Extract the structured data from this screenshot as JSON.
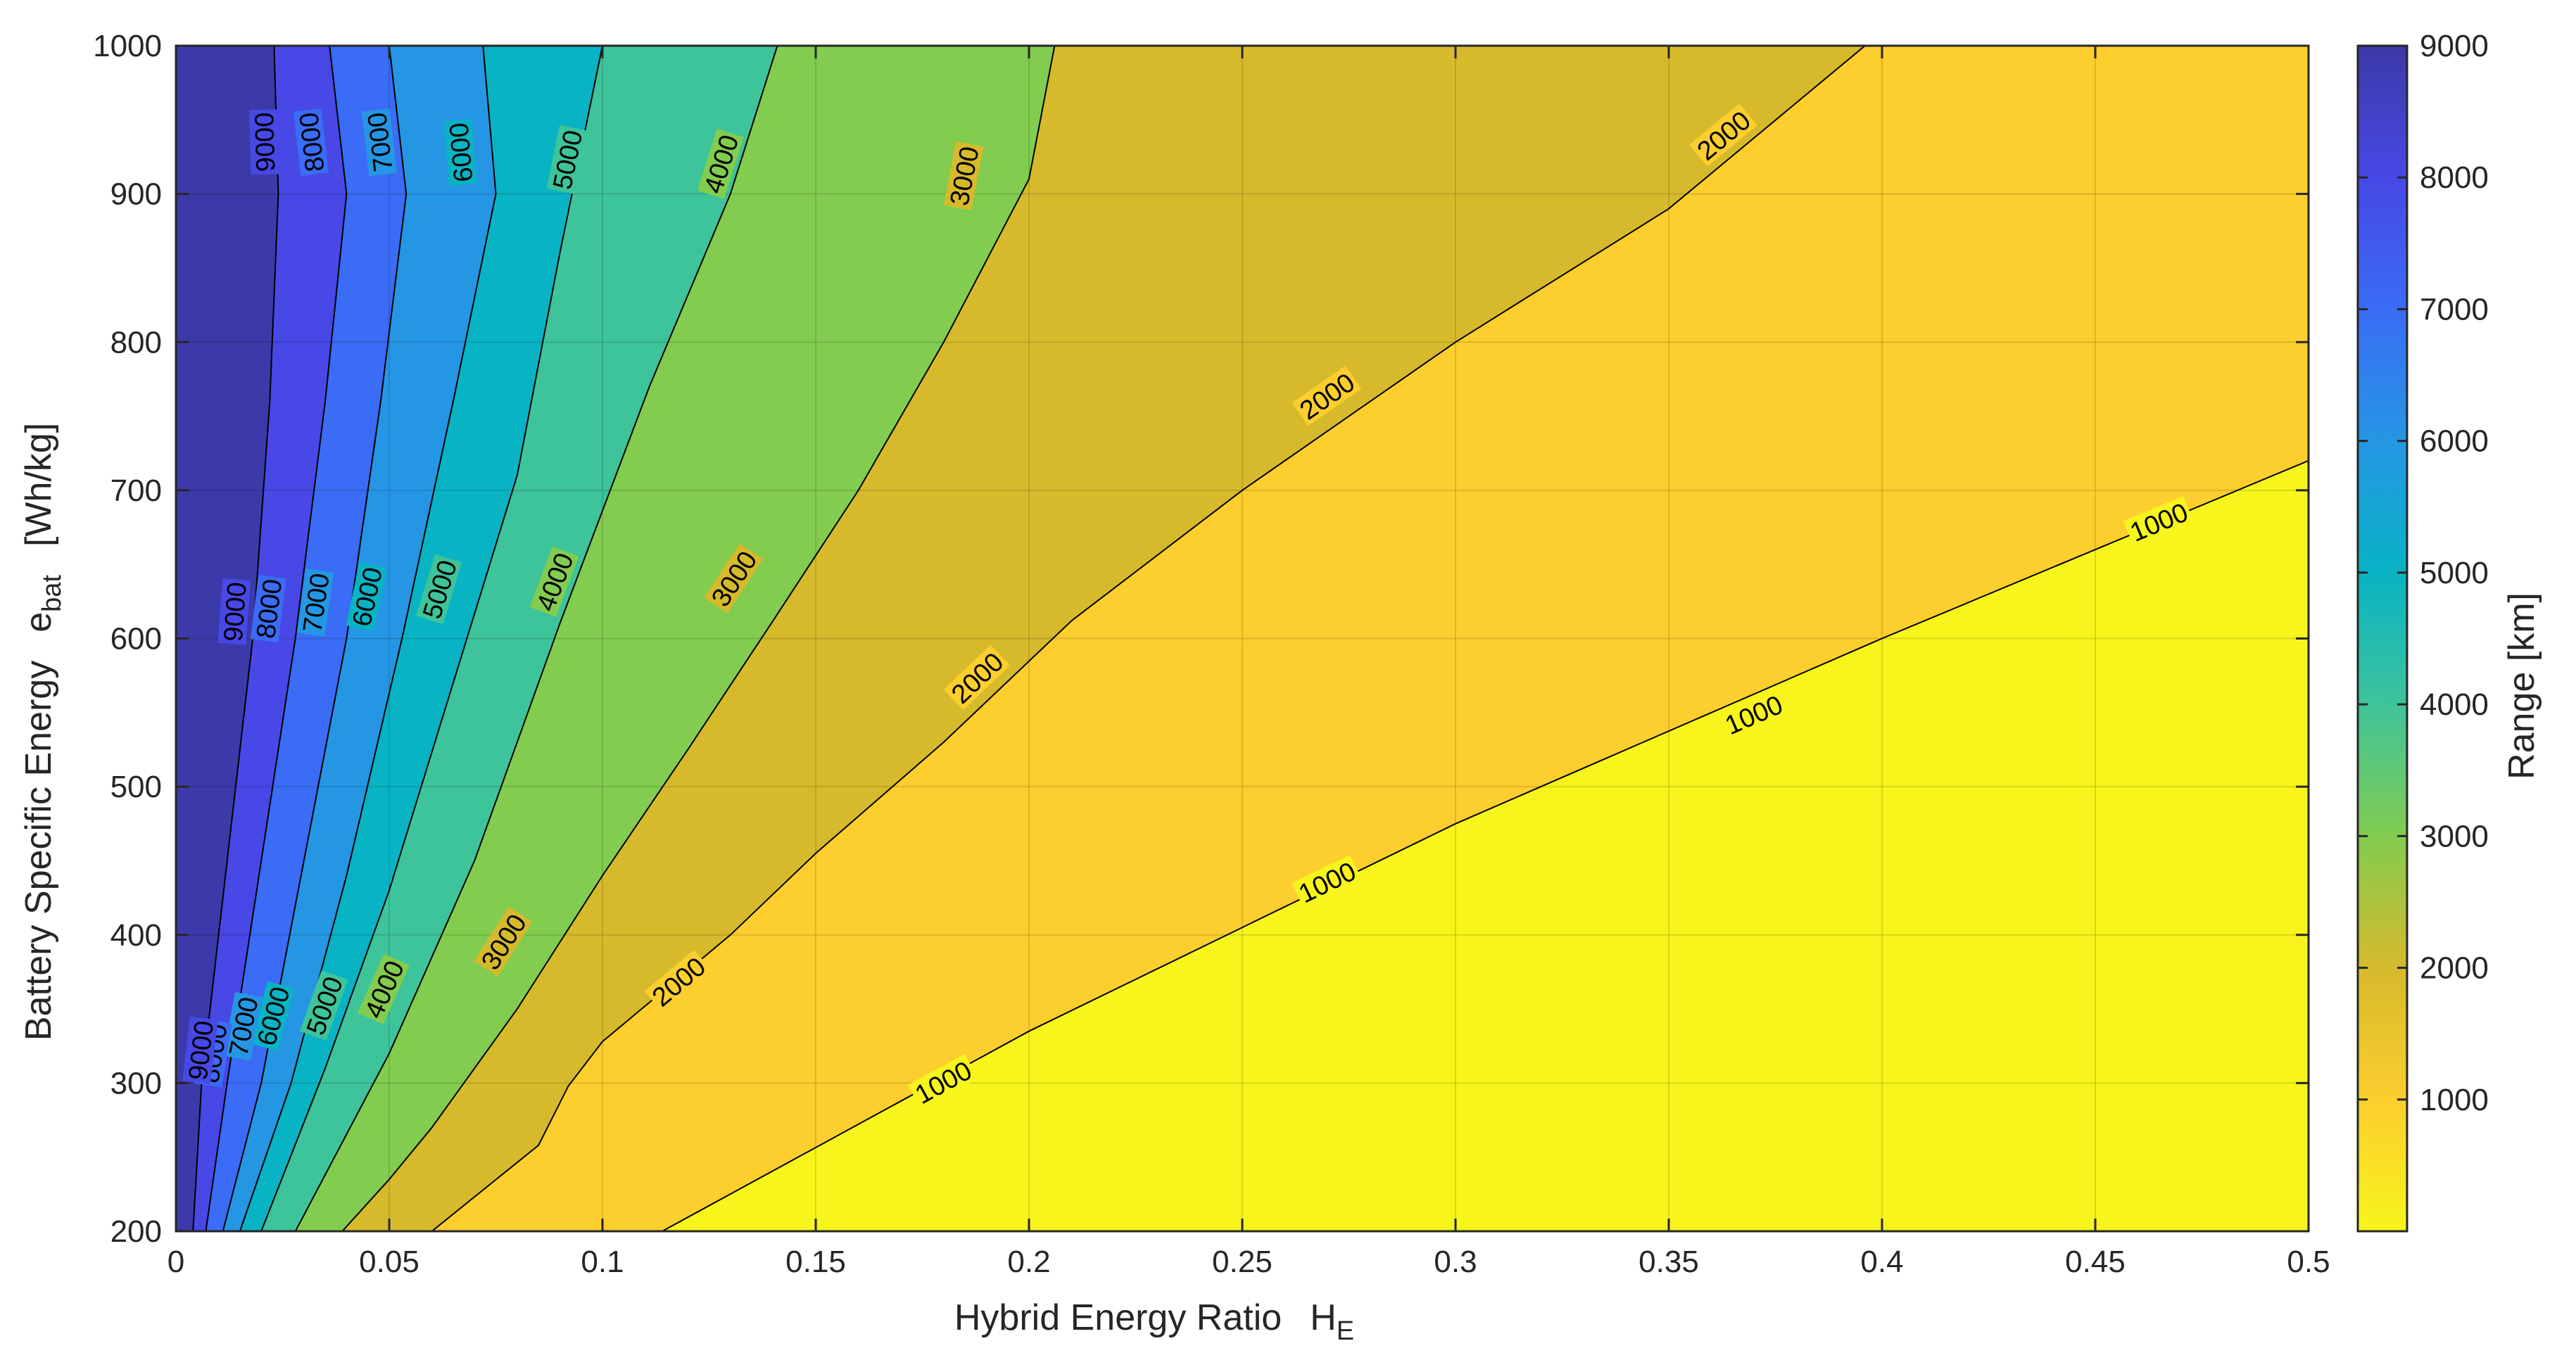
{
  "chart_data": {
    "type": "contour",
    "xlabel": "Hybrid  Energy  Ratio",
    "xlabel_symbol": "H",
    "xlabel_subscript": "E",
    "ylabel": "Battery  Specific  Energy",
    "ylabel_symbol": "e",
    "ylabel_subscript": "bat",
    "ylabel_unit": "[Wh/kg]",
    "colorbar_label": "Range  [km]",
    "xlim": [
      0,
      0.5
    ],
    "ylim": [
      200,
      1000
    ],
    "x_ticks": [
      "0",
      "0.05",
      "0.1",
      "0.15",
      "0.2",
      "0.25",
      "0.3",
      "0.35",
      "0.4",
      "0.45",
      "0.5"
    ],
    "y_ticks": [
      "200",
      "300",
      "400",
      "500",
      "600",
      "700",
      "800",
      "900",
      "1000"
    ],
    "colorbar_ticks": [
      "1000",
      "2000",
      "3000",
      "4000",
      "5000",
      "6000",
      "7000",
      "8000",
      "9000"
    ],
    "colorbar_range": [
      0,
      9000
    ],
    "grid": true,
    "colormap": "parula",
    "levels": [
      {
        "level": 1000,
        "fill": "#f7f51b",
        "boundary": [
          [
            0.114,
            200
          ],
          [
            0.2,
            335
          ],
          [
            0.3,
            475
          ],
          [
            0.4,
            600
          ],
          [
            0.5,
            720
          ]
        ],
        "label_points": [
          [
            0.18,
            300
          ],
          [
            0.27,
            435
          ],
          [
            0.37,
            548
          ],
          [
            0.465,
            678
          ]
        ]
      },
      {
        "level": 2000,
        "fill": "#fcce2e",
        "boundary": [
          [
            0.06,
            200
          ],
          [
            0.085,
            258
          ],
          [
            0.092,
            298
          ],
          [
            0.1,
            328
          ],
          [
            0.13,
            400
          ],
          [
            0.15,
            455
          ],
          [
            0.18,
            530
          ],
          [
            0.21,
            612
          ],
          [
            0.25,
            700
          ],
          [
            0.3,
            800
          ],
          [
            0.35,
            890
          ],
          [
            0.396,
            1000
          ]
        ],
        "label_points": [
          [
            0.118,
            368
          ],
          [
            0.188,
            573
          ],
          [
            0.27,
            763
          ],
          [
            0.363,
            939
          ]
        ]
      },
      {
        "level": 3000,
        "fill": "#d6ba2c",
        "boundary": [
          [
            0.039,
            200
          ],
          [
            0.05,
            235
          ],
          [
            0.06,
            270
          ],
          [
            0.08,
            350
          ],
          [
            0.1,
            440
          ],
          [
            0.12,
            525
          ],
          [
            0.14,
            612
          ],
          [
            0.16,
            700
          ],
          [
            0.18,
            800
          ],
          [
            0.2,
            910
          ],
          [
            0.206,
            1000
          ]
        ],
        "label_points": [
          [
            0.077,
            395
          ],
          [
            0.131,
            640
          ],
          [
            0.185,
            912
          ]
        ]
      },
      {
        "level": 4000,
        "fill": "#82cc4f",
        "boundary": [
          [
            0.028,
            200
          ],
          [
            0.05,
            320
          ],
          [
            0.07,
            450
          ],
          [
            0.09,
            610
          ],
          [
            0.111,
            770
          ],
          [
            0.13,
            900
          ],
          [
            0.141,
            1000
          ]
        ],
        "label_points": [
          [
            0.049,
            363
          ],
          [
            0.089,
            638
          ],
          [
            0.128,
            920
          ]
        ]
      },
      {
        "level": 5000,
        "fill": "#3ec49a",
        "boundary": [
          [
            0.02,
            200
          ],
          [
            0.035,
            310
          ],
          [
            0.05,
            430
          ],
          [
            0.065,
            570
          ],
          [
            0.08,
            710
          ],
          [
            0.09,
            860
          ],
          [
            0.1,
            1000
          ]
        ],
        "label_points": [
          [
            0.035,
            352
          ],
          [
            0.062,
            633
          ],
          [
            0.092,
            923
          ]
        ]
      },
      {
        "level": 6000,
        "fill": "#08b3c4",
        "boundary": [
          [
            0.015,
            200
          ],
          [
            0.027,
            300
          ],
          [
            0.04,
            440
          ],
          [
            0.053,
            600
          ],
          [
            0.065,
            760
          ],
          [
            0.075,
            900
          ],
          [
            0.072,
            1000
          ]
        ],
        "label_points": [
          [
            0.023,
            345
          ],
          [
            0.045,
            628
          ],
          [
            0.067,
            928
          ]
        ]
      },
      {
        "level": 7000,
        "fill": "#2596e4",
        "boundary": [
          [
            0.011,
            200
          ],
          [
            0.02,
            300
          ],
          [
            0.03,
            450
          ],
          [
            0.04,
            600
          ],
          [
            0.048,
            760
          ],
          [
            0.054,
            900
          ],
          [
            0.05,
            1000
          ]
        ],
        "label_points": [
          [
            0.016,
            338
          ],
          [
            0.033,
            624
          ],
          [
            0.048,
            935
          ]
        ]
      },
      {
        "level": 8000,
        "fill": "#3a6cf5",
        "boundary": [
          [
            0.007,
            200
          ],
          [
            0.012,
            300
          ],
          [
            0.02,
            450
          ],
          [
            0.028,
            600
          ],
          [
            0.035,
            760
          ],
          [
            0.04,
            900
          ],
          [
            0.036,
            1000
          ]
        ],
        "label_points": [
          [
            0.009,
            320
          ],
          [
            0.022,
            620
          ],
          [
            0.032,
            935
          ]
        ]
      },
      {
        "level": 9000,
        "fill": "#4748e5",
        "boundary": [
          [
            0.004,
            200
          ],
          [
            0.006,
            300
          ],
          [
            0.012,
            450
          ],
          [
            0.018,
            600
          ],
          [
            0.022,
            760
          ],
          [
            0.024,
            900
          ],
          [
            0.023,
            1000
          ]
        ],
        "label_points": [
          [
            0.006,
            322
          ],
          [
            0.014,
            618
          ],
          [
            0.021,
            935
          ]
        ]
      },
      {
        "level": 10000,
        "fill": "#3c3aa8",
        "boundary": [],
        "label_points": []
      }
    ],
    "colorbar_stops": [
      "#f7f51b",
      "#fcce2e",
      "#d6ba2c",
      "#82cc4f",
      "#3ec49a",
      "#08b3c4",
      "#2596e4",
      "#3a6cf5",
      "#4748e5",
      "#3c3aa8"
    ]
  }
}
